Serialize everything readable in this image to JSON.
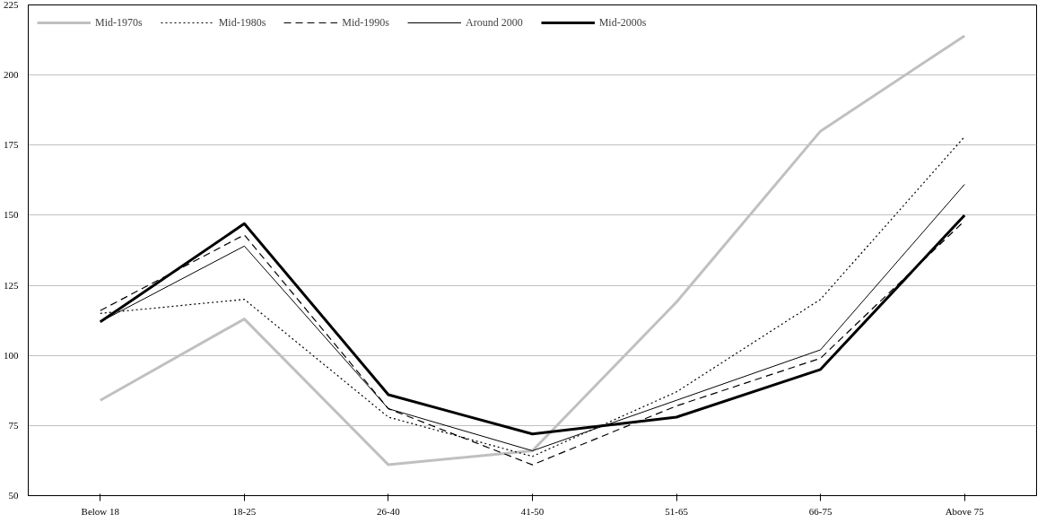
{
  "chart_data": {
    "type": "line",
    "categories": [
      "Below 18",
      "18-25",
      "26-40",
      "41-50",
      "51-65",
      "66-75",
      "Above 75"
    ],
    "series": [
      {
        "name": "Mid-1970s",
        "color": "#c0c0c0",
        "line_style": "solid",
        "values": [
          84,
          113,
          61,
          66,
          119,
          180,
          214
        ]
      },
      {
        "name": "Mid-1980s",
        "color": "#000000",
        "line_style": "dotted",
        "values": [
          115,
          120,
          78,
          64,
          87,
          120,
          178
        ]
      },
      {
        "name": "Mid-1990s",
        "color": "#000000",
        "line_style": "dashed",
        "values": [
          116,
          143,
          81,
          61,
          82,
          99,
          148
        ]
      },
      {
        "name": "Around 2000",
        "color": "#000000",
        "line_style": "solid",
        "values": [
          112,
          139,
          81,
          66,
          84,
          102,
          161
        ]
      },
      {
        "name": "Mid-2000s",
        "color": "#000000",
        "line_style": "solid",
        "values": [
          112,
          147,
          86,
          72,
          78,
          95,
          150
        ]
      }
    ],
    "ylim": [
      50,
      225
    ],
    "yticks": [
      50,
      75,
      100,
      125,
      150,
      175,
      200,
      225
    ],
    "grid": "y",
    "legend": "top left",
    "marker": "none"
  }
}
